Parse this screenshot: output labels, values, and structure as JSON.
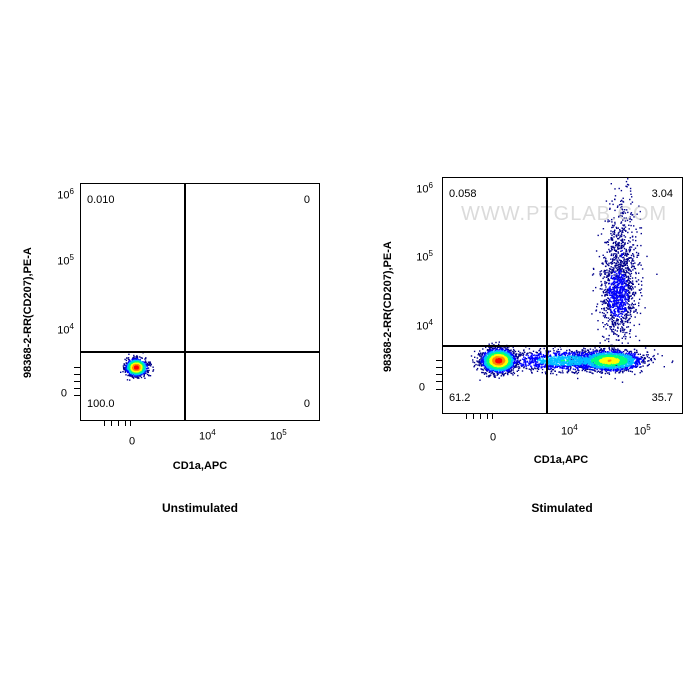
{
  "chart_data": [
    {
      "type": "scatter",
      "subtitle": "Unstimulated",
      "xlabel": "CD1a,APC",
      "ylabel": "98368-2-RR(CD207),PE-A",
      "x_scale": "biexponential",
      "y_scale": "biexponential",
      "x_ticks": [
        {
          "base": "0",
          "exp": ""
        },
        {
          "base": "10",
          "exp": "4"
        },
        {
          "base": "10",
          "exp": "5"
        }
      ],
      "y_ticks": [
        {
          "base": "0",
          "exp": ""
        },
        {
          "base": "10",
          "exp": "4"
        },
        {
          "base": "10",
          "exp": "5"
        },
        {
          "base": "10",
          "exp": "6"
        }
      ],
      "quadrant_percentages": {
        "upper_left": "0.010",
        "upper_right": "0",
        "lower_left": "100.0",
        "lower_right": "0"
      },
      "populations": [
        {
          "center_x": 0,
          "center_y": 0,
          "description": "single dense cluster near origin"
        }
      ],
      "colormap": [
        "#00008b",
        "#0000ff",
        "#00bfff",
        "#00ff7f",
        "#ffff00",
        "#ff8c00",
        "#ff0000"
      ]
    },
    {
      "type": "scatter",
      "subtitle": "Stimulated",
      "xlabel": "CD1a,APC",
      "ylabel": "98368-2-RR(CD207),PE-A",
      "x_scale": "biexponential",
      "y_scale": "biexponential",
      "x_ticks": [
        {
          "base": "0",
          "exp": ""
        },
        {
          "base": "10",
          "exp": "4"
        },
        {
          "base": "10",
          "exp": "5"
        }
      ],
      "y_ticks": [
        {
          "base": "0",
          "exp": ""
        },
        {
          "base": "10",
          "exp": "4"
        },
        {
          "base": "10",
          "exp": "5"
        },
        {
          "base": "10",
          "exp": "6"
        }
      ],
      "quadrant_percentages": {
        "upper_left": "0.058",
        "upper_right": "3.04",
        "lower_left": "61.2",
        "lower_right": "35.7"
      },
      "populations": [
        {
          "center_x": 0,
          "center_y": 0,
          "description": "CD1a-negative dense cluster"
        },
        {
          "center_x": 30000,
          "center_y": 0,
          "description": "CD1a-positive cluster"
        },
        {
          "center_x": 40000,
          "center_y": 30000,
          "description": "CD1a+ CD207+ upward smear"
        }
      ],
      "colormap": [
        "#00008b",
        "#0000ff",
        "#00bfff",
        "#00ff7f",
        "#ffff00",
        "#ff8c00",
        "#ff0000"
      ]
    }
  ],
  "watermark": "WWW.PTGLAB.COM"
}
